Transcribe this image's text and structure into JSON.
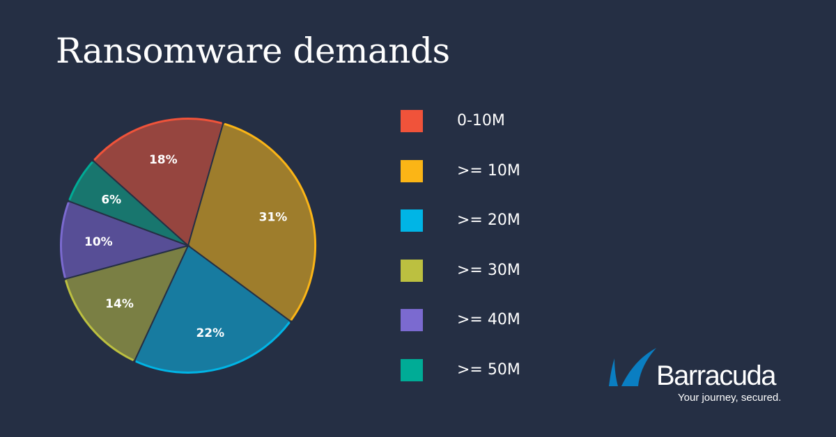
{
  "chart_data": {
    "type": "pie",
    "title": "Ransomware demands",
    "categories": [
      "0-10M",
      ">= 10M",
      ">= 20M",
      ">= 30M",
      ">= 40M",
      ">= 50M"
    ],
    "values": [
      18,
      31,
      22,
      14,
      10,
      6
    ],
    "data_labels": [
      "18%",
      "31%",
      "22%",
      "14%",
      "10%",
      "6%"
    ],
    "legend_colors": [
      "#f0533a",
      "#fbb516",
      "#00b5e6",
      "#bcc040",
      "#7b6ad0",
      "#00ac96"
    ],
    "slice_colors": [
      "#96453f",
      "#9e7d2c",
      "#177ba0",
      "#7a7f44",
      "#574e96",
      "#18766e"
    ],
    "legend_placement": "right"
  },
  "logo": {
    "brand": "Barracuda",
    "tagline": "Your journey, secured.",
    "color": "#0a7ec2"
  }
}
